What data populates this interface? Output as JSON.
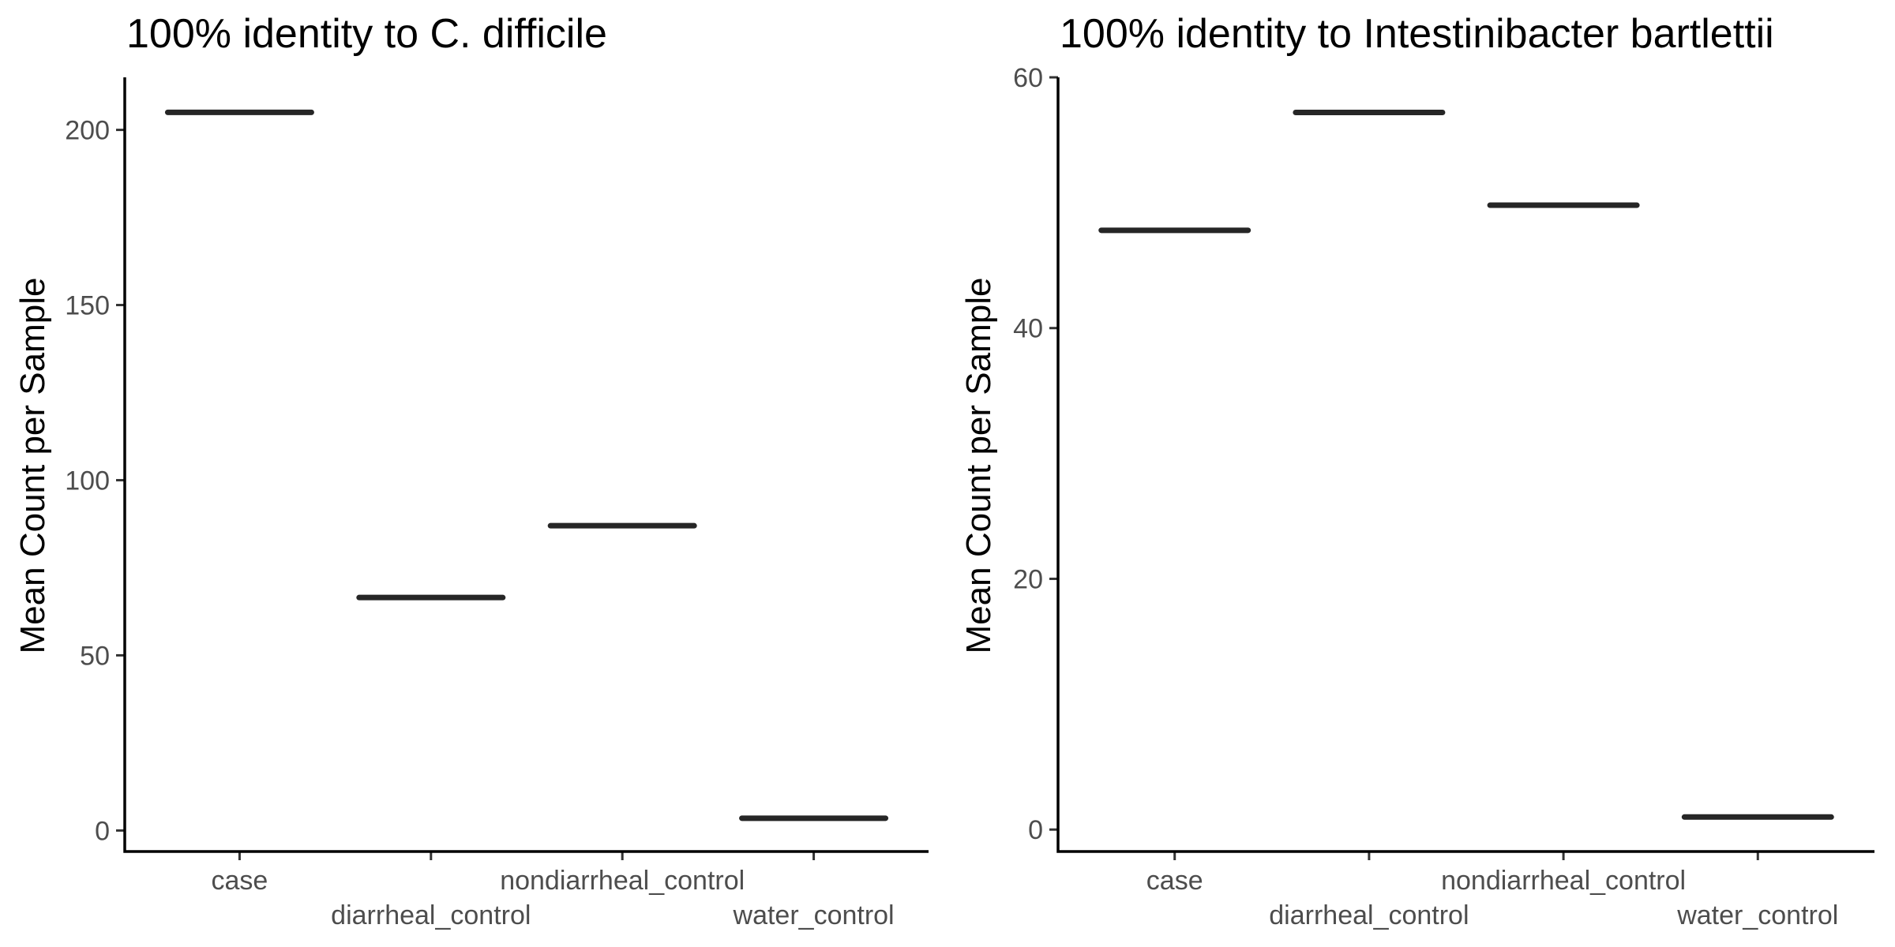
{
  "chart_data": [
    {
      "type": "crossbar",
      "title": "100% identity to C. difficile",
      "xlabel": "",
      "ylabel": "Mean Count per Sample",
      "categories": [
        "case",
        "diarrheal_control",
        "nondiarrheal_control",
        "water_control"
      ],
      "values": [
        205,
        66.5,
        87,
        3.5
      ],
      "ylim": [
        -6,
        215
      ],
      "yticks": [
        0,
        50,
        100,
        150,
        200
      ],
      "grid": false,
      "legend": "none",
      "bar_color": "#262626"
    },
    {
      "type": "crossbar",
      "title": "100% identity to Intestinibacter bartlettii",
      "xlabel": "",
      "ylabel": "Mean Count per Sample",
      "categories": [
        "case",
        "diarrheal_control",
        "nondiarrheal_control",
        "water_control"
      ],
      "values": [
        47.8,
        57.2,
        49.8,
        1
      ],
      "ylim": [
        -1.75,
        60
      ],
      "yticks": [
        0,
        20,
        40,
        60
      ],
      "grid": false,
      "legend": "none",
      "bar_color": "#262626"
    }
  ]
}
